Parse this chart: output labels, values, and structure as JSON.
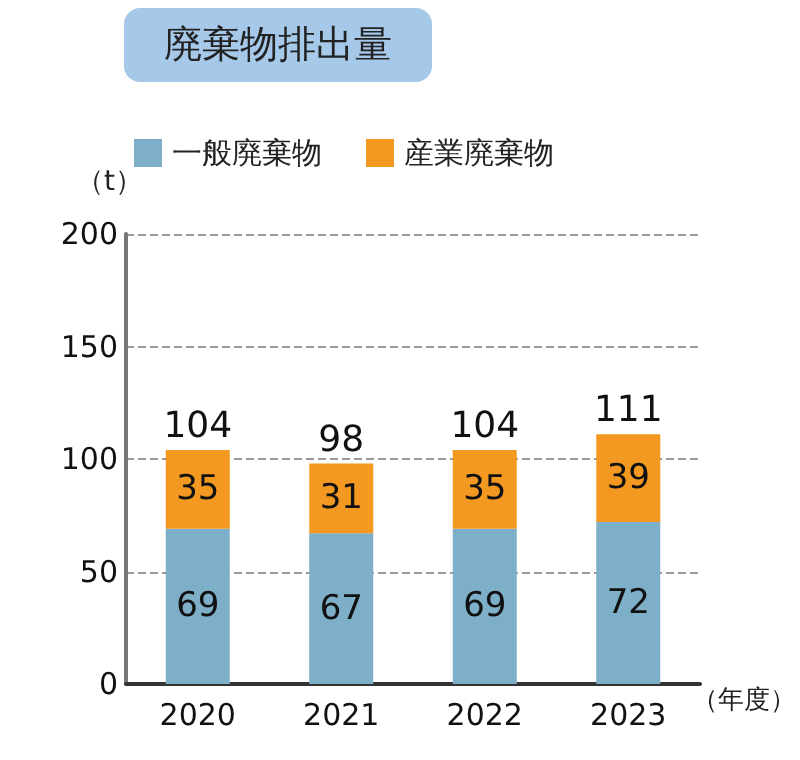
{
  "chart_data": {
    "type": "bar",
    "title": "廃棄物排出量",
    "ylabel": "（t）",
    "xlabel": "（年度）",
    "categories": [
      "2020",
      "2021",
      "2022",
      "2023"
    ],
    "series": [
      {
        "name": "一般廃棄物",
        "color": "#7eafc8",
        "values": [
          69,
          67,
          69,
          72
        ]
      },
      {
        "name": "産業廃棄物",
        "color": "#f39820",
        "values": [
          35,
          31,
          35,
          39
        ]
      }
    ],
    "stacked": true,
    "data_labels": true,
    "totals": [
      "104",
      "98",
      "104",
      "111"
    ],
    "ylim": [
      0,
      200
    ],
    "yticks": [
      0,
      50,
      100,
      150,
      200
    ],
    "grid": "y",
    "legend": "top left"
  }
}
